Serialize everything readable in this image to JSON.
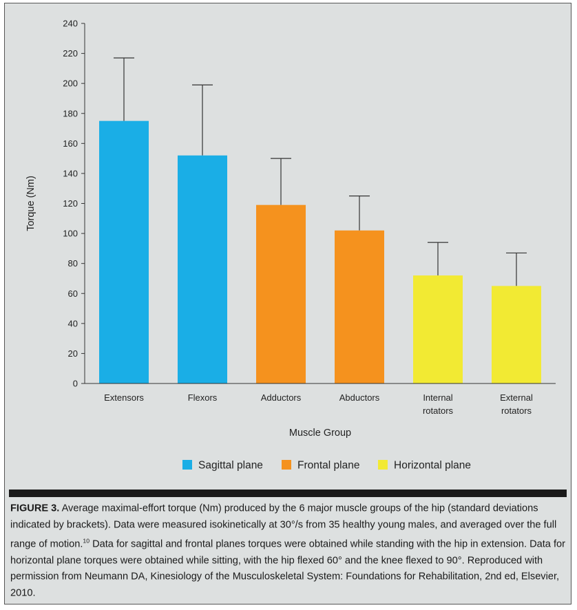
{
  "chart_data": {
    "type": "bar",
    "categories": [
      "Extensors",
      "Flexors",
      "Adductors",
      "Abductors",
      "Internal rotators",
      "External rotators"
    ],
    "category_lines": [
      [
        "Extensors"
      ],
      [
        "Flexors"
      ],
      [
        "Adductors"
      ],
      [
        "Abductors"
      ],
      [
        "Internal",
        "rotators"
      ],
      [
        "External",
        "rotators"
      ]
    ],
    "values": [
      175,
      152,
      119,
      102,
      72,
      65
    ],
    "error_upper": [
      217,
      199,
      150,
      125,
      94,
      87
    ],
    "groups": [
      "Sagittal plane",
      "Sagittal plane",
      "Frontal plane",
      "Frontal plane",
      "Horizontal plane",
      "Horizontal plane"
    ],
    "legend": [
      {
        "name": "Sagittal plane",
        "color": "#1aaee6"
      },
      {
        "name": "Frontal plane",
        "color": "#f5921e"
      },
      {
        "name": "Horizontal plane",
        "color": "#f2ea33"
      }
    ],
    "xlabel": "Muscle Group",
    "ylabel": "Torque (Nm)",
    "ylim": [
      0,
      240
    ],
    "yticks": [
      0,
      20,
      40,
      60,
      80,
      100,
      120,
      140,
      160,
      180,
      200,
      220,
      240
    ],
    "legend_position": "bottom",
    "grid": false
  },
  "caption": {
    "label": "FIGURE 3.",
    "text": " Average maximal-effort torque (Nm) produced by the 6 major muscle groups of the hip (standard deviations indicated by brackets). Data were measured isokinetically at 30°/s from 35 healthy young males, and averaged over the full range of motion.",
    "ref": "10",
    "text2": " Data for sagittal and frontal planes torques were obtained while standing with the hip in extension. Data for horizontal plane torques were obtained while sitting, with the hip flexed 60° and the knee flexed to 90°. Reproduced with permission from Neumann DA, Kinesiology of the Musculoskeletal System: Foundations for Rehabilitation, 2nd ed, Elsevier, 2010."
  }
}
